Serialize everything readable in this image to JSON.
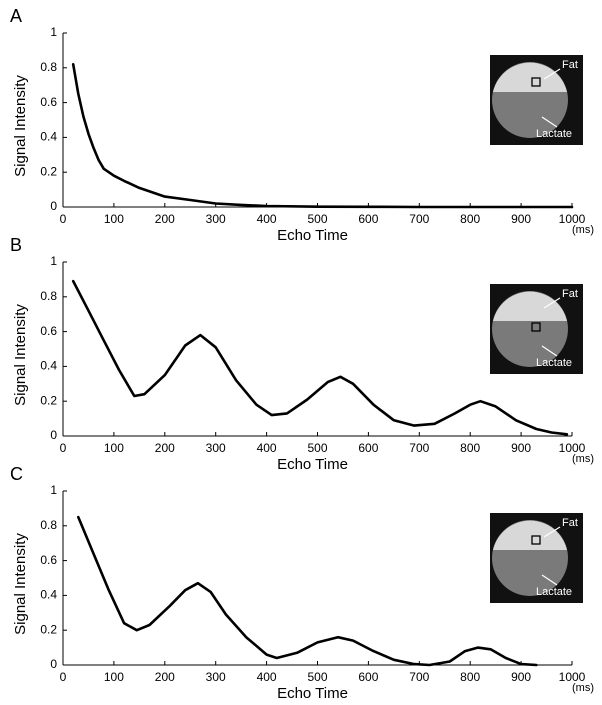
{
  "chart_data": [
    {
      "type": "line",
      "panel_label": "A",
      "y_label": "Signal Intensity",
      "x_label": "Echo Time",
      "x_unit": "(ms)",
      "inset_labels": [
        "Fat",
        "Lactate"
      ],
      "color": "#000000",
      "xlim": [
        0,
        1000
      ],
      "ylim": [
        0,
        1
      ],
      "xticks": [
        0,
        100,
        200,
        300,
        400,
        500,
        600,
        700,
        800,
        900,
        1000
      ],
      "yticks": [
        0,
        0.2,
        0.4,
        0.6,
        0.8,
        1
      ],
      "x": [
        20,
        30,
        40,
        50,
        60,
        70,
        80,
        100,
        120,
        150,
        200,
        250,
        300,
        350,
        400,
        500,
        600,
        700,
        800,
        900,
        1000
      ],
      "values": [
        0.82,
        0.65,
        0.52,
        0.42,
        0.34,
        0.27,
        0.22,
        0.18,
        0.15,
        0.11,
        0.06,
        0.04,
        0.02,
        0.012,
        0.006,
        0.002,
        0.001,
        0,
        0,
        0,
        0
      ]
    },
    {
      "type": "line",
      "panel_label": "B",
      "y_label": "Signal Intensity",
      "x_label": "Echo Time",
      "x_unit": "(ms)",
      "inset_labels": [
        "Fat",
        "Lactate"
      ],
      "color": "#000000",
      "xlim": [
        0,
        1000
      ],
      "ylim": [
        0,
        1
      ],
      "xticks": [
        0,
        100,
        200,
        300,
        400,
        500,
        600,
        700,
        800,
        900,
        1000
      ],
      "yticks": [
        0,
        0.2,
        0.4,
        0.6,
        0.8,
        1
      ],
      "x": [
        20,
        50,
        80,
        110,
        140,
        160,
        200,
        240,
        270,
        300,
        340,
        380,
        410,
        440,
        480,
        520,
        545,
        570,
        610,
        650,
        690,
        730,
        770,
        800,
        820,
        850,
        890,
        930,
        960,
        990
      ],
      "values": [
        0.89,
        0.72,
        0.55,
        0.38,
        0.23,
        0.24,
        0.35,
        0.52,
        0.58,
        0.51,
        0.32,
        0.18,
        0.12,
        0.13,
        0.21,
        0.31,
        0.34,
        0.3,
        0.18,
        0.09,
        0.06,
        0.07,
        0.13,
        0.18,
        0.2,
        0.17,
        0.09,
        0.04,
        0.02,
        0.01
      ]
    },
    {
      "type": "line",
      "panel_label": "C",
      "y_label": "Signal Intensity",
      "x_label": "Echo Time",
      "x_unit": "(ms)",
      "inset_labels": [
        "Fat",
        "Lactate"
      ],
      "color": "#000000",
      "xlim": [
        0,
        1000
      ],
      "ylim": [
        0,
        1
      ],
      "xticks": [
        0,
        100,
        200,
        300,
        400,
        500,
        600,
        700,
        800,
        900,
        1000
      ],
      "yticks": [
        0,
        0.2,
        0.4,
        0.6,
        0.8,
        1
      ],
      "x": [
        30,
        60,
        90,
        120,
        145,
        170,
        210,
        240,
        265,
        290,
        320,
        360,
        400,
        420,
        460,
        500,
        540,
        570,
        610,
        650,
        690,
        720,
        760,
        790,
        815,
        840,
        870,
        900,
        930
      ],
      "values": [
        0.85,
        0.64,
        0.43,
        0.24,
        0.2,
        0.23,
        0.34,
        0.43,
        0.47,
        0.42,
        0.29,
        0.16,
        0.06,
        0.04,
        0.07,
        0.13,
        0.16,
        0.14,
        0.08,
        0.03,
        0.005,
        0,
        0.02,
        0.08,
        0.1,
        0.09,
        0.04,
        0.005,
        0
      ]
    }
  ]
}
